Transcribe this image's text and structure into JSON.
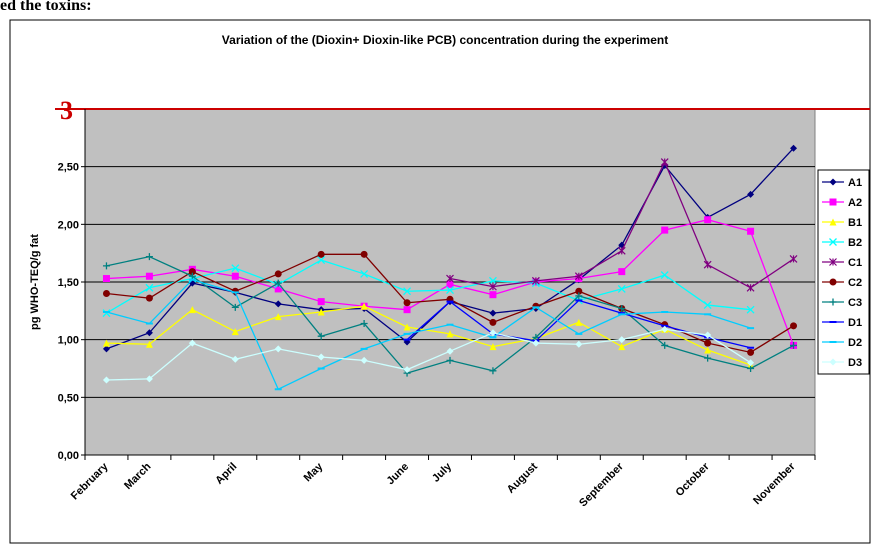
{
  "page_text": "ed the toxins:",
  "chart_data": {
    "type": "line",
    "title": "Variation of the (Dioxin+ Dioxin-like PCB) concentration during the experiment",
    "y_label": "pg WHO-TEQ/g fat",
    "categories": [
      "February",
      "March",
      null,
      "April",
      null,
      "May",
      null,
      "June",
      "July",
      null,
      "August",
      null,
      "September",
      null,
      "October",
      null,
      "November"
    ],
    "ylim": [
      0,
      3
    ],
    "yticks": [
      {
        "value": 0,
        "label": "0,00"
      },
      {
        "value": 0.5,
        "label": "0,50"
      },
      {
        "value": 1,
        "label": "1,00"
      },
      {
        "value": 1.5,
        "label": "1,50"
      },
      {
        "value": 2,
        "label": "2,00"
      },
      {
        "value": 2.5,
        "label": "2,50"
      },
      3
    ],
    "grid": true,
    "reference_line": {
      "value": 3,
      "color": "#cc0000"
    },
    "legend": "right",
    "series": [
      {
        "name": "A1",
        "color": "#000080",
        "marker": "diamond",
        "values": [
          0.92,
          1.06,
          1.49,
          1.41,
          1.31,
          1.26,
          1.27,
          0.98,
          1.33,
          1.23,
          1.27,
          1.52,
          1.82,
          2.51,
          2.06,
          2.26,
          2.66
        ]
      },
      {
        "name": "A2",
        "color": "#ff00ff",
        "marker": "square",
        "values": [
          1.53,
          1.55,
          1.61,
          1.55,
          1.44,
          1.33,
          1.29,
          1.26,
          1.48,
          1.39,
          1.5,
          1.53,
          1.59,
          1.95,
          2.04,
          1.94,
          0.95
        ]
      },
      {
        "name": "B1",
        "color": "#ffff00",
        "marker": "triangle",
        "values": [
          0.97,
          0.96,
          1.26,
          1.07,
          1.2,
          1.24,
          1.29,
          1.11,
          1.05,
          0.94,
          1.01,
          1.15,
          0.94,
          1.09,
          0.91,
          0.78,
          null
        ]
      },
      {
        "name": "B2",
        "color": "#00ffff",
        "marker": "x",
        "values": [
          1.23,
          1.45,
          1.53,
          1.62,
          1.48,
          1.69,
          1.57,
          1.42,
          1.43,
          1.51,
          1.49,
          1.34,
          1.44,
          1.56,
          1.3,
          1.26,
          null
        ]
      },
      {
        "name": "C1",
        "color": "#800080",
        "marker": "asterisk",
        "values": [
          null,
          null,
          null,
          null,
          null,
          null,
          null,
          null,
          1.53,
          1.46,
          1.51,
          1.55,
          1.77,
          2.54,
          1.65,
          1.45,
          1.7
        ]
      },
      {
        "name": "C2",
        "color": "#800000",
        "marker": "circle",
        "values": [
          1.4,
          1.36,
          1.59,
          1.42,
          1.57,
          1.74,
          1.74,
          1.32,
          1.35,
          1.15,
          1.29,
          1.42,
          1.27,
          1.13,
          0.97,
          0.89,
          1.12
        ]
      },
      {
        "name": "C3",
        "color": "#008080",
        "marker": "plus",
        "values": [
          1.64,
          1.72,
          1.55,
          1.28,
          1.49,
          1.03,
          1.14,
          0.71,
          0.82,
          0.73,
          1.02,
          1.38,
          1.27,
          0.95,
          0.84,
          0.75,
          0.95
        ]
      },
      {
        "name": "D1",
        "color": "#0000ff",
        "marker": "dash",
        "values": [
          null,
          null,
          null,
          null,
          null,
          null,
          null,
          1.0,
          1.33,
          1.05,
          0.99,
          1.34,
          1.23,
          1.12,
          1.02,
          0.93,
          null
        ]
      },
      {
        "name": "D2",
        "color": "#00ccff",
        "marker": "dash",
        "values": [
          1.24,
          1.14,
          1.52,
          1.41,
          0.57,
          0.75,
          0.92,
          1.05,
          1.13,
          1.02,
          1.28,
          1.05,
          1.22,
          1.24,
          1.22,
          1.1,
          null
        ]
      },
      {
        "name": "D3",
        "color": "#ccffff",
        "marker": "diamond",
        "values": [
          0.65,
          0.66,
          0.97,
          0.83,
          0.92,
          0.85,
          0.82,
          0.74,
          0.9,
          1.06,
          0.97,
          0.96,
          1.0,
          1.09,
          1.04,
          0.8,
          null
        ]
      }
    ]
  }
}
